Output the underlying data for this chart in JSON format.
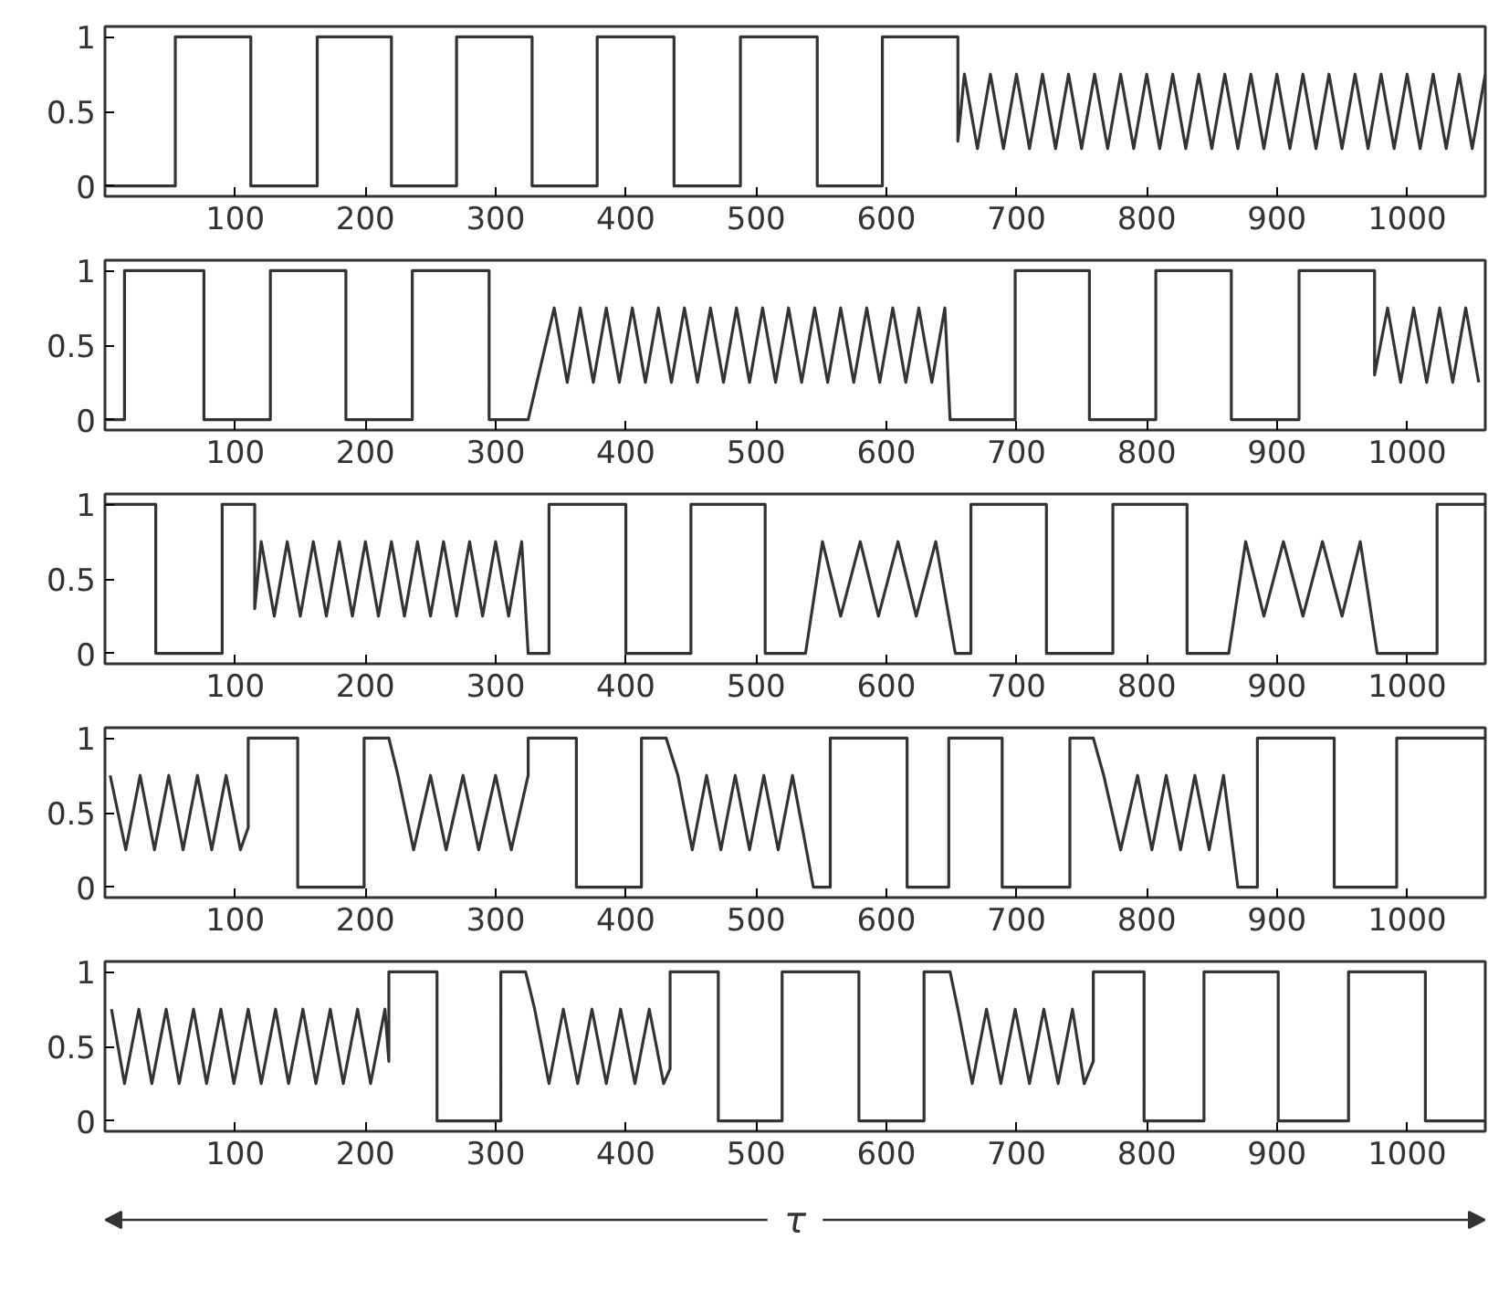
{
  "chart_data": [
    {
      "type": "line",
      "xlim": [
        0,
        1060
      ],
      "ylim": [
        -0.07,
        1.07
      ],
      "xticks": [
        100,
        200,
        300,
        400,
        500,
        600,
        700,
        800,
        900,
        1000
      ],
      "yticks": [
        0,
        0.5,
        1
      ],
      "grid": false,
      "series": [
        {
          "color": "#333333",
          "x": [
            0,
            54,
            54,
            112,
            112,
            163,
            163,
            220,
            220,
            270,
            270,
            328,
            328,
            378,
            378,
            437,
            437,
            488,
            488,
            547,
            547,
            597,
            597,
            655,
            655,
            660,
            670,
            680,
            690,
            700,
            710,
            720,
            730,
            740,
            750,
            760,
            770,
            780,
            790,
            800,
            810,
            820,
            830,
            840,
            850,
            860,
            870,
            880,
            890,
            900,
            910,
            920,
            930,
            940,
            950,
            960,
            970,
            980,
            990,
            1000,
            1010,
            1020,
            1030,
            1040,
            1050,
            1060
          ],
          "values": [
            0,
            0,
            1,
            1,
            0,
            0,
            1,
            1,
            0,
            0,
            1,
            1,
            0,
            0,
            1,
            1,
            0,
            0,
            1,
            1,
            0,
            0,
            1,
            1,
            0.3,
            0.75,
            0.25,
            0.75,
            0.25,
            0.75,
            0.25,
            0.75,
            0.25,
            0.75,
            0.25,
            0.75,
            0.25,
            0.75,
            0.25,
            0.75,
            0.25,
            0.75,
            0.25,
            0.75,
            0.25,
            0.75,
            0.25,
            0.75,
            0.25,
            0.75,
            0.25,
            0.75,
            0.25,
            0.75,
            0.25,
            0.75,
            0.25,
            0.75,
            0.25,
            0.75,
            0.25,
            0.75,
            0.25,
            0.75,
            0.25,
            0.75
          ]
        }
      ]
    },
    {
      "type": "line",
      "xlim": [
        0,
        1060
      ],
      "ylim": [
        -0.07,
        1.07
      ],
      "xticks": [
        100,
        200,
        300,
        400,
        500,
        600,
        700,
        800,
        900,
        1000
      ],
      "yticks": [
        0,
        0.5,
        1
      ],
      "grid": false,
      "series": [
        {
          "color": "#333333",
          "x": [
            0,
            15,
            15,
            76,
            76,
            127,
            127,
            185,
            185,
            236,
            236,
            295,
            295,
            325,
            345,
            355,
            365,
            375,
            385,
            395,
            405,
            415,
            425,
            435,
            445,
            455,
            465,
            475,
            485,
            495,
            505,
            515,
            525,
            535,
            545,
            555,
            565,
            575,
            585,
            595,
            605,
            615,
            625,
            635,
            645,
            649,
            699,
            699,
            756,
            756,
            807,
            807,
            865,
            865,
            917,
            917,
            975,
            975,
            985,
            995,
            1005,
            1015,
            1025,
            1035,
            1045,
            1055
          ],
          "values": [
            0,
            0,
            1,
            1,
            0,
            0,
            1,
            1,
            0,
            0,
            1,
            1,
            0,
            0,
            0.75,
            0.25,
            0.75,
            0.25,
            0.75,
            0.25,
            0.75,
            0.25,
            0.75,
            0.25,
            0.75,
            0.25,
            0.75,
            0.25,
            0.75,
            0.25,
            0.75,
            0.25,
            0.75,
            0.25,
            0.75,
            0.25,
            0.75,
            0.25,
            0.75,
            0.25,
            0.75,
            0.25,
            0.75,
            0.25,
            0.75,
            0,
            0,
            1,
            1,
            0,
            0,
            1,
            1,
            0,
            0,
            1,
            1,
            0.3,
            0.75,
            0.25,
            0.75,
            0.25,
            0.75,
            0.25,
            0.75,
            0.25
          ]
        }
      ]
    },
    {
      "type": "line",
      "xlim": [
        0,
        1060
      ],
      "ylim": [
        -0.07,
        1.07
      ],
      "xticks": [
        100,
        200,
        300,
        400,
        500,
        600,
        700,
        800,
        900,
        1000
      ],
      "yticks": [
        0,
        0.5,
        1
      ],
      "grid": false,
      "series": [
        {
          "color": "#333333",
          "x": [
            0,
            39,
            39,
            90,
            90,
            115,
            115,
            120,
            130,
            140,
            150,
            160,
            170,
            180,
            190,
            200,
            210,
            220,
            230,
            240,
            250,
            260,
            270,
            280,
            290,
            300,
            310,
            320,
            325,
            341,
            341,
            400,
            400,
            450,
            450,
            507,
            507,
            538,
            551,
            565,
            580,
            594,
            609,
            623,
            638,
            653,
            665,
            665,
            723,
            723,
            774,
            774,
            831,
            831,
            863,
            876,
            890,
            905,
            920,
            935,
            950,
            964,
            977,
            1023,
            1023,
            1060
          ],
          "values": [
            1,
            1,
            0,
            0,
            1,
            1,
            0.3,
            0.75,
            0.25,
            0.75,
            0.25,
            0.75,
            0.25,
            0.75,
            0.25,
            0.75,
            0.25,
            0.75,
            0.25,
            0.75,
            0.25,
            0.75,
            0.25,
            0.75,
            0.25,
            0.75,
            0.25,
            0.75,
            0,
            0,
            1,
            1,
            0,
            0,
            1,
            1,
            0,
            0,
            0.75,
            0.25,
            0.75,
            0.25,
            0.75,
            0.25,
            0.75,
            0,
            0,
            1,
            1,
            0,
            0,
            1,
            1,
            0,
            0,
            0.75,
            0.25,
            0.75,
            0.25,
            0.75,
            0.25,
            0.75,
            0,
            0,
            1,
            1
          ]
        }
      ]
    },
    {
      "type": "line",
      "xlim": [
        0,
        1060
      ],
      "ylim": [
        -0.07,
        1.07
      ],
      "xticks": [
        100,
        200,
        300,
        400,
        500,
        600,
        700,
        800,
        900,
        1000
      ],
      "yticks": [
        0,
        0.5,
        1
      ],
      "grid": false,
      "series": [
        {
          "color": "#333333",
          "x": [
            4,
            16,
            27,
            38,
            49,
            60,
            71,
            82,
            93,
            104,
            110,
            110,
            148,
            148,
            199,
            199,
            218,
            225,
            237,
            250,
            262,
            275,
            287,
            300,
            312,
            325,
            325,
            362,
            362,
            412,
            412,
            431,
            440,
            451,
            462,
            473,
            484,
            495,
            506,
            517,
            528,
            544,
            557,
            557,
            616,
            616,
            648,
            648,
            689,
            689,
            741,
            741,
            759,
            767,
            780,
            793,
            804,
            815,
            826,
            837,
            848,
            859,
            870,
            885,
            885,
            944,
            944,
            992,
            992,
            1060
          ],
          "values": [
            0.75,
            0.25,
            0.75,
            0.25,
            0.75,
            0.25,
            0.75,
            0.25,
            0.75,
            0.25,
            0.4,
            1,
            1,
            0,
            0,
            1,
            1,
            0.75,
            0.25,
            0.75,
            0.25,
            0.75,
            0.25,
            0.75,
            0.25,
            0.75,
            1,
            1,
            0,
            0,
            1,
            1,
            0.75,
            0.25,
            0.75,
            0.25,
            0.75,
            0.25,
            0.75,
            0.25,
            0.75,
            0,
            0,
            1,
            1,
            0,
            0,
            1,
            1,
            0,
            0,
            1,
            1,
            0.75,
            0.25,
            0.75,
            0.25,
            0.75,
            0.25,
            0.75,
            0.25,
            0.75,
            0,
            0,
            1,
            1,
            0,
            0,
            1,
            1
          ]
        }
      ]
    },
    {
      "type": "line",
      "xlim": [
        0,
        1060
      ],
      "ylim": [
        -0.07,
        1.07
      ],
      "xticks": [
        100,
        200,
        300,
        400,
        500,
        600,
        700,
        800,
        900,
        1000
      ],
      "yticks": [
        0,
        0.5,
        1
      ],
      "grid": false,
      "xlabel": "τ",
      "series": [
        {
          "color": "#333333",
          "x": [
            5,
            15,
            26,
            36,
            47,
            57,
            68,
            78,
            89,
            99,
            110,
            120,
            131,
            141,
            152,
            162,
            173,
            183,
            194,
            204,
            215,
            218,
            218,
            255,
            255,
            304,
            304,
            323,
            330,
            341,
            352,
            363,
            374,
            385,
            396,
            407,
            418,
            429,
            434,
            434,
            471,
            471,
            520,
            520,
            579,
            579,
            629,
            629,
            649,
            655,
            666,
            677,
            688,
            699,
            710,
            721,
            732,
            743,
            752,
            759,
            759,
            798,
            798,
            844,
            844,
            901,
            901,
            955,
            955,
            1014,
            1014,
            1060
          ],
          "values": [
            0.75,
            0.25,
            0.75,
            0.25,
            0.75,
            0.25,
            0.75,
            0.25,
            0.75,
            0.25,
            0.75,
            0.25,
            0.75,
            0.25,
            0.75,
            0.25,
            0.75,
            0.25,
            0.75,
            0.25,
            0.75,
            0.4,
            1,
            1,
            0,
            0,
            1,
            1,
            0.75,
            0.25,
            0.75,
            0.25,
            0.75,
            0.25,
            0.75,
            0.25,
            0.75,
            0.25,
            0.35,
            1,
            1,
            0,
            0,
            1,
            1,
            0,
            0,
            1,
            1,
            0.75,
            0.25,
            0.75,
            0.25,
            0.75,
            0.25,
            0.75,
            0.25,
            0.75,
            0.25,
            0.4,
            1,
            1,
            0,
            0,
            1,
            1,
            0,
            0,
            1,
            1,
            0,
            0
          ]
        }
      ]
    }
  ]
}
